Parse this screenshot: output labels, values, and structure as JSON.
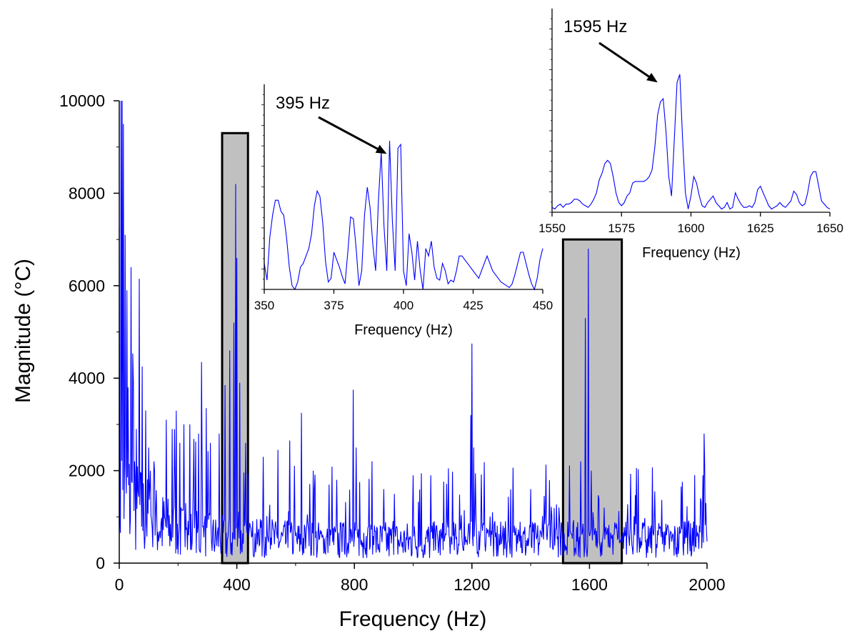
{
  "colors": {
    "series": "#0000ff",
    "axis": "#000000",
    "ylabel": "#ff0000",
    "highlight_fill": "#c0c0c0",
    "highlight_stroke": "#000000",
    "background": "#ffffff"
  },
  "chart_data": [
    {
      "id": "main",
      "type": "line",
      "xlabel": "Frequency (Hz)",
      "ylabel": "Magnitude (°C)",
      "xlim": [
        0,
        2000
      ],
      "ylim": [
        0,
        10000
      ],
      "xticks": [
        0,
        400,
        800,
        1200,
        1600,
        2000
      ],
      "yticks": [
        0,
        2000,
        4000,
        6000,
        8000,
        10000
      ],
      "highlight_regions": [
        {
          "x": [
            350,
            438
          ],
          "y": [
            0,
            9300
          ]
        },
        {
          "x": [
            1510,
            1710
          ],
          "y": [
            0,
            7000
          ]
        }
      ],
      "noise_floor": 650,
      "peaks": [
        {
          "x": 5,
          "y": 10000
        },
        {
          "x": 10,
          "y": 10000
        },
        {
          "x": 14,
          "y": 9500
        },
        {
          "x": 20,
          "y": 7100
        },
        {
          "x": 25,
          "y": 5900
        },
        {
          "x": 30,
          "y": 3800
        },
        {
          "x": 40,
          "y": 6400
        },
        {
          "x": 48,
          "y": 3900
        },
        {
          "x": 58,
          "y": 2900
        },
        {
          "x": 68,
          "y": 6150
        },
        {
          "x": 78,
          "y": 4250
        },
        {
          "x": 90,
          "y": 3300
        },
        {
          "x": 100,
          "y": 2500
        },
        {
          "x": 120,
          "y": 2000
        },
        {
          "x": 160,
          "y": 3100
        },
        {
          "x": 180,
          "y": 2900
        },
        {
          "x": 205,
          "y": 2600
        },
        {
          "x": 220,
          "y": 3000
        },
        {
          "x": 240,
          "y": 3000
        },
        {
          "x": 270,
          "y": 2800
        },
        {
          "x": 280,
          "y": 4350
        },
        {
          "x": 295,
          "y": 3350
        },
        {
          "x": 310,
          "y": 2600
        },
        {
          "x": 340,
          "y": 2800
        },
        {
          "x": 360,
          "y": 3850
        },
        {
          "x": 375,
          "y": 4600
        },
        {
          "x": 390,
          "y": 5200
        },
        {
          "x": 395,
          "y": 8200
        },
        {
          "x": 400,
          "y": 6600
        },
        {
          "x": 410,
          "y": 3900
        },
        {
          "x": 430,
          "y": 2600
        },
        {
          "x": 490,
          "y": 2300
        },
        {
          "x": 540,
          "y": 2450
        },
        {
          "x": 580,
          "y": 2650
        },
        {
          "x": 620,
          "y": 3250
        },
        {
          "x": 660,
          "y": 2000
        },
        {
          "x": 740,
          "y": 1800
        },
        {
          "x": 795,
          "y": 3750
        },
        {
          "x": 805,
          "y": 2500
        },
        {
          "x": 900,
          "y": 1600
        },
        {
          "x": 1000,
          "y": 1900
        },
        {
          "x": 1060,
          "y": 1900
        },
        {
          "x": 1120,
          "y": 2050
        },
        {
          "x": 1195,
          "y": 3200
        },
        {
          "x": 1200,
          "y": 4750
        },
        {
          "x": 1205,
          "y": 2500
        },
        {
          "x": 1270,
          "y": 1100
        },
        {
          "x": 1400,
          "y": 1600
        },
        {
          "x": 1450,
          "y": 1100
        },
        {
          "x": 1570,
          "y": 2200
        },
        {
          "x": 1585,
          "y": 5300
        },
        {
          "x": 1595,
          "y": 6800
        },
        {
          "x": 1605,
          "y": 2000
        },
        {
          "x": 1650,
          "y": 1200
        },
        {
          "x": 1800,
          "y": 800
        },
        {
          "x": 1990,
          "y": 2800
        },
        {
          "x": 1985,
          "y": 1900
        },
        {
          "x": 1995,
          "y": 1300
        }
      ]
    },
    {
      "id": "inset1",
      "type": "line",
      "xlabel": "Frequency (Hz)",
      "ylabel": "",
      "xlim": [
        350,
        450
      ],
      "xticks": [
        350,
        375,
        400,
        425,
        450
      ],
      "yrange": [
        0,
        1
      ],
      "annotation": {
        "text": "395 Hz",
        "target": [
          394,
          0.73
        ]
      },
      "x": [
        350,
        351,
        352,
        353,
        354,
        355,
        356,
        357,
        358,
        359,
        360,
        361,
        362,
        363,
        364,
        365,
        366,
        367,
        368,
        369,
        370,
        371,
        372,
        373,
        374,
        375,
        376,
        377,
        378,
        379,
        380,
        381,
        382,
        383,
        384,
        385,
        386,
        387,
        388,
        389,
        390,
        391,
        392,
        393,
        394,
        395,
        396,
        397,
        398,
        399,
        400,
        401,
        402,
        403,
        404,
        405,
        406,
        407,
        408,
        409,
        410,
        411,
        412,
        413,
        414,
        415,
        416,
        417,
        418,
        419,
        420,
        421,
        422,
        423,
        424,
        425,
        426,
        427,
        428,
        429,
        430,
        431,
        432,
        433,
        434,
        435,
        436,
        437,
        438,
        439,
        440,
        441,
        442,
        443,
        444,
        445,
        446,
        447,
        448,
        449,
        450
      ],
      "y": [
        0.14,
        0.05,
        0.28,
        0.4,
        0.48,
        0.48,
        0.42,
        0.4,
        0.28,
        0.12,
        0.02,
        0.0,
        0.04,
        0.12,
        0.14,
        0.18,
        0.22,
        0.3,
        0.45,
        0.53,
        0.5,
        0.36,
        0.15,
        0.04,
        0.06,
        0.2,
        0.16,
        0.12,
        0.07,
        0.03,
        0.2,
        0.39,
        0.38,
        0.22,
        0.02,
        0.1,
        0.4,
        0.55,
        0.44,
        0.24,
        0.1,
        0.48,
        0.74,
        0.34,
        0.1,
        0.8,
        0.37,
        0.1,
        0.76,
        0.78,
        0.1,
        0.02,
        0.3,
        0.2,
        0.05,
        0.26,
        0.1,
        0.0,
        0.22,
        0.18,
        0.26,
        0.12,
        0.06,
        0.05,
        0.14,
        0.1,
        0.03,
        0.05,
        0.04,
        0.1,
        0.18,
        0.18,
        0.16,
        0.14,
        0.12,
        0.1,
        0.08,
        0.06,
        0.1,
        0.14,
        0.18,
        0.14,
        0.1,
        0.08,
        0.06,
        0.04,
        0.03,
        0.02,
        0.01,
        0.03,
        0.08,
        0.14,
        0.2,
        0.2,
        0.14,
        0.08,
        0.03,
        0.0,
        0.06,
        0.16,
        0.22
      ]
    },
    {
      "id": "inset2",
      "type": "line",
      "xlabel": "Frequency (Hz)",
      "ylabel": "",
      "xlim": [
        1550,
        1650
      ],
      "xticks": [
        1550,
        1575,
        1600,
        1625,
        1650
      ],
      "yrange": [
        0,
        1
      ],
      "annotation": {
        "text": "1595 Hz",
        "target": [
          1588,
          0.8
        ]
      },
      "x": [
        1550,
        1551,
        1552,
        1553,
        1554,
        1555,
        1556,
        1557,
        1558,
        1559,
        1560,
        1561,
        1562,
        1563,
        1564,
        1565,
        1566,
        1567,
        1568,
        1569,
        1570,
        1571,
        1572,
        1573,
        1574,
        1575,
        1576,
        1577,
        1578,
        1579,
        1580,
        1581,
        1582,
        1583,
        1584,
        1585,
        1586,
        1587,
        1588,
        1589,
        1590,
        1591,
        1592,
        1593,
        1594,
        1595,
        1596,
        1597,
        1598,
        1599,
        1600,
        1601,
        1602,
        1603,
        1604,
        1605,
        1606,
        1607,
        1608,
        1609,
        1610,
        1611,
        1612,
        1613,
        1614,
        1615,
        1616,
        1617,
        1618,
        1619,
        1620,
        1621,
        1622,
        1623,
        1624,
        1625,
        1626,
        1627,
        1628,
        1629,
        1630,
        1631,
        1632,
        1633,
        1634,
        1635,
        1636,
        1637,
        1638,
        1639,
        1640,
        1641,
        1642,
        1643,
        1644,
        1645,
        1646,
        1647,
        1648,
        1649,
        1650
      ],
      "y": [
        0.03,
        0.02,
        0.04,
        0.05,
        0.03,
        0.05,
        0.05,
        0.06,
        0.08,
        0.08,
        0.07,
        0.05,
        0.04,
        0.03,
        0.05,
        0.08,
        0.12,
        0.2,
        0.24,
        0.3,
        0.32,
        0.3,
        0.22,
        0.12,
        0.06,
        0.04,
        0.06,
        0.1,
        0.12,
        0.18,
        0.19,
        0.19,
        0.19,
        0.19,
        0.2,
        0.22,
        0.26,
        0.4,
        0.6,
        0.68,
        0.7,
        0.5,
        0.22,
        0.1,
        0.45,
        0.8,
        0.85,
        0.45,
        0.12,
        0.02,
        0.1,
        0.22,
        0.18,
        0.1,
        0.04,
        0.03,
        0.06,
        0.08,
        0.1,
        0.06,
        0.04,
        0.02,
        0.03,
        0.06,
        0.02,
        0.03,
        0.12,
        0.08,
        0.05,
        0.03,
        0.03,
        0.04,
        0.03,
        0.06,
        0.14,
        0.16,
        0.12,
        0.08,
        0.04,
        0.02,
        0.03,
        0.04,
        0.06,
        0.04,
        0.03,
        0.05,
        0.07,
        0.13,
        0.11,
        0.06,
        0.04,
        0.05,
        0.12,
        0.22,
        0.25,
        0.25,
        0.16,
        0.07,
        0.05,
        0.03,
        0.02
      ]
    }
  ]
}
